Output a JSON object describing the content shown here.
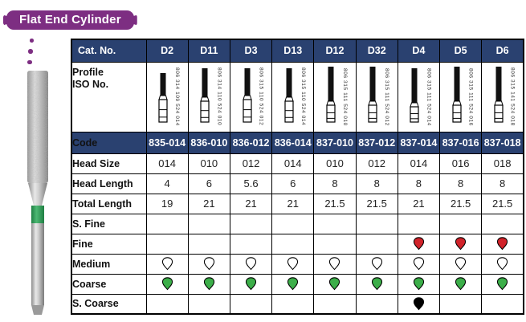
{
  "title": "Flat End Cylinder",
  "colors": {
    "navy": "#2a4170",
    "purple": "#7d2e82",
    "marks": {
      "red": "#d1232a",
      "green": "#3cae49",
      "white": "#ffffff",
      "black": "#000000"
    }
  },
  "table": {
    "cat_no_label": "Cat. No.",
    "profile_label_line1": "Profile",
    "profile_label_line2": "ISO No.",
    "code_label": "Code",
    "columns": [
      "D2",
      "D11",
      "D3",
      "D13",
      "D12",
      "D32",
      "D4",
      "D5",
      "D6"
    ],
    "iso": [
      "806 314 109 524 014",
      "806 314 110 524 010",
      "806 315 110 524 012",
      "806 315 110 524 014",
      "806 315 111 524 010",
      "806 315 111 524 012",
      "806 315 111 524 014",
      "806 315 111 524 016",
      "806 315 141 524 018"
    ],
    "codes": [
      "835-014",
      "836-010",
      "836-012",
      "836-014",
      "837-010",
      "837-012",
      "837-014",
      "837-016",
      "837-018"
    ],
    "rows": [
      {
        "label": "Head Size",
        "values": [
          "014",
          "010",
          "012",
          "014",
          "010",
          "012",
          "014",
          "016",
          "018"
        ]
      },
      {
        "label": "Head Length",
        "values": [
          "4",
          "6",
          "5.6",
          "6",
          "8",
          "8",
          "8",
          "8",
          "8"
        ]
      },
      {
        "label": "Total Length",
        "values": [
          "19",
          "21",
          "21",
          "21",
          "21.5",
          "21.5",
          "21",
          "21.5",
          "21.5"
        ]
      }
    ],
    "grit_rows": [
      {
        "label": "S. Fine",
        "marks": [
          "",
          "",
          "",
          "",
          "",
          "",
          "",
          "",
          ""
        ]
      },
      {
        "label": "Fine",
        "marks": [
          "",
          "",
          "",
          "",
          "",
          "",
          "red",
          "red",
          "red"
        ]
      },
      {
        "label": "Medium",
        "marks": [
          "white",
          "white",
          "white",
          "white",
          "white",
          "white",
          "white",
          "white",
          "white"
        ]
      },
      {
        "label": "Coarse",
        "marks": [
          "green",
          "green",
          "green",
          "green",
          "green",
          "green",
          "green",
          "green",
          "green"
        ]
      },
      {
        "label": "S. Coarse",
        "marks": [
          "",
          "",
          "",
          "",
          "",
          "",
          "black",
          "",
          ""
        ]
      }
    ]
  }
}
